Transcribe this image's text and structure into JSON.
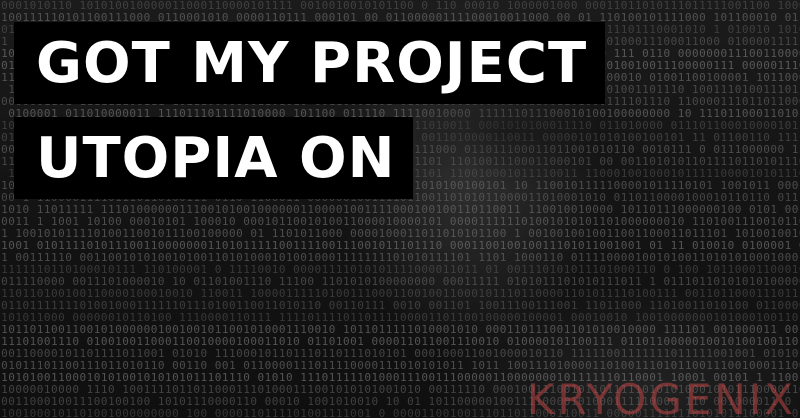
{
  "headline": {
    "line1": "GOT MY PROJECT",
    "line2": "UTOPIA ON"
  },
  "watermark": "KRYOGENIX",
  "colors": {
    "headline_bg": "#000000",
    "headline_text": "#ffffff",
    "watermark": "#be4646"
  }
}
